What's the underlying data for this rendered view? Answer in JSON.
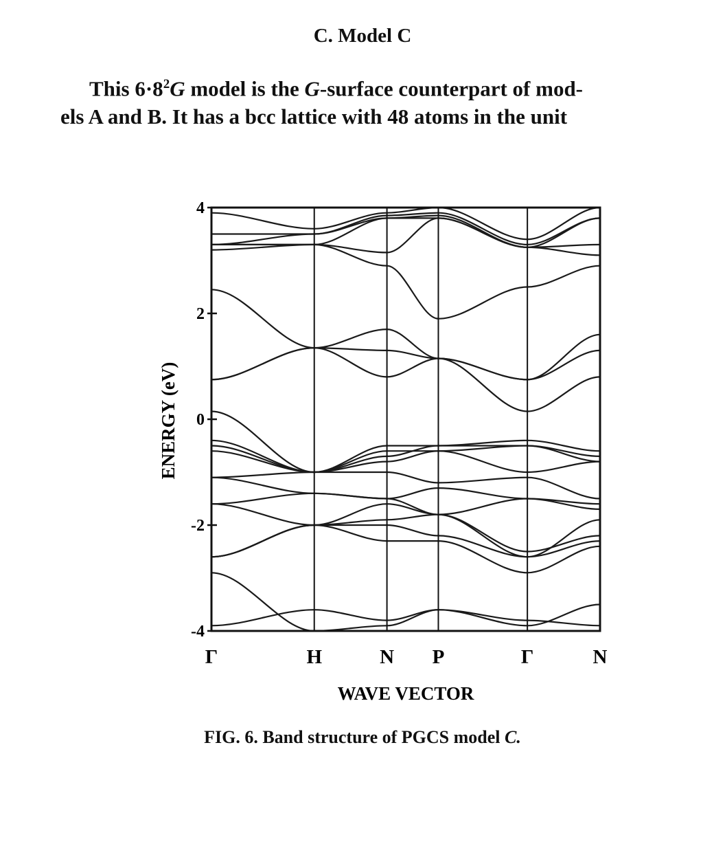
{
  "section_heading": "C. Model C",
  "paragraph": {
    "line1_prefix": "This 6·8",
    "line1_sup": "2",
    "line1_g": "G",
    "line1_mid": " model is the ",
    "line1_g2": "G",
    "line1_suffix": "-surface counterpart of mod-",
    "line2": "els A and B.  It has a bcc lattice with 48 atoms in the unit"
  },
  "caption": {
    "prefix": "FIG. 6.  Band structure of PGCS model ",
    "italic": "C."
  },
  "chart_data": {
    "type": "line",
    "xlabel": "WAVE VECTOR",
    "ylabel": "ENERGY (eV)",
    "ylim": [
      -4,
      4
    ],
    "y_ticks": [
      4,
      2,
      0,
      -2,
      -4
    ],
    "y_tick_labels": [
      "4",
      "2",
      "0",
      "-2",
      "-4"
    ],
    "k_points": [
      {
        "label": "Γ",
        "x": 0
      },
      {
        "label": "H",
        "x": 1
      },
      {
        "label": "N",
        "x": 1.707
      },
      {
        "label": "P",
        "x": 2.207
      },
      {
        "label": "Γ",
        "x": 3.073
      },
      {
        "label": "N",
        "x": 3.78
      }
    ],
    "grid": false,
    "band_nodes": [
      [
        -4,
        -4,
        -4,
        -4,
        -4,
        -4
      ],
      [
        -3.9,
        -3.6,
        -3.8,
        -3.6,
        -3.8,
        -3.9
      ],
      [
        -2.9,
        -4,
        -3.9,
        -3.6,
        -3.9,
        -3.5
      ],
      [
        -2.6,
        -2.0,
        -2.3,
        -2.3,
        -2.9,
        -2.4
      ],
      [
        -2.6,
        -2.0,
        -2.0,
        -2.2,
        -2.6,
        -2.3
      ],
      [
        -2.6,
        -2.0,
        -1.9,
        -1.8,
        -2.5,
        -2.2
      ],
      [
        -1.6,
        -2.0,
        -1.6,
        -1.8,
        -2.6,
        -1.9
      ],
      [
        -1.6,
        -1.4,
        -1.5,
        -1.8,
        -1.5,
        -1.7
      ],
      [
        -1.1,
        -1.4,
        -1.5,
        -1.3,
        -1.5,
        -1.6
      ],
      [
        -1.1,
        -1.0,
        -1.0,
        -1.2,
        -1.1,
        -1.5
      ],
      [
        -0.6,
        -1.0,
        -0.8,
        -0.6,
        -1.0,
        -0.8
      ],
      [
        -0.5,
        -1.0,
        -0.7,
        -0.5,
        -0.5,
        -0.7
      ],
      [
        -0.4,
        -1.0,
        -0.5,
        -0.5,
        -0.4,
        -0.6
      ],
      [
        0.15,
        -1.0,
        -0.6,
        -0.6,
        -0.5,
        -0.8
      ],
      [
        0.75,
        1.35,
        0.8,
        1.15,
        0.15,
        0.8
      ],
      [
        0.75,
        1.35,
        1.3,
        1.15,
        0.75,
        1.3
      ],
      [
        2.45,
        1.35,
        1.7,
        1.15,
        0.75,
        1.6
      ],
      [
        3.2,
        3.3,
        2.9,
        1.9,
        2.5,
        2.9
      ],
      [
        3.3,
        3.3,
        3.15,
        3.8,
        3.25,
        3.1
      ],
      [
        3.3,
        3.3,
        3.8,
        3.8,
        3.25,
        3.3
      ],
      [
        3.3,
        3.5,
        3.8,
        3.85,
        3.25,
        3.8
      ],
      [
        3.5,
        3.5,
        3.85,
        3.9,
        3.3,
        3.8
      ],
      [
        3.9,
        3.6,
        3.9,
        4,
        3.4,
        4
      ]
    ]
  }
}
